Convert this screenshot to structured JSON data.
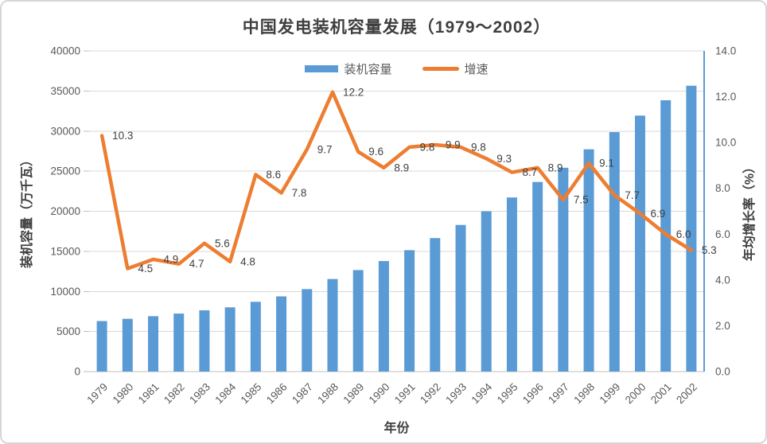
{
  "chart_data": {
    "type": "combo_bar_line",
    "title": "中国发电装机容量发展（1979～2002）",
    "categories": [
      "1979",
      "1980",
      "1981",
      "1982",
      "1983",
      "1984",
      "1985",
      "1986",
      "1987",
      "1988",
      "1989",
      "1990",
      "1991",
      "1992",
      "1993",
      "1994",
      "1995",
      "1996",
      "1997",
      "1998",
      "1999",
      "2000",
      "2001",
      "2002"
    ],
    "series": [
      {
        "name": "装机容量",
        "type": "bar",
        "axis": "left",
        "color": "#5B9BD5",
        "values": [
          6302,
          6587,
          6913,
          7236,
          7644,
          8012,
          8705,
          9382,
          10290,
          11550,
          12664,
          13789,
          15147,
          16653,
          18291,
          19990,
          21722,
          23654,
          25424,
          27729,
          29877,
          31932,
          33849,
          35657
        ]
      },
      {
        "name": "增速",
        "type": "line",
        "axis": "right",
        "color": "#ED7D31",
        "values": [
          10.3,
          4.5,
          4.9,
          4.7,
          5.6,
          4.8,
          8.6,
          7.8,
          9.7,
          12.2,
          9.6,
          8.9,
          9.8,
          9.9,
          9.8,
          9.3,
          8.7,
          8.9,
          7.5,
          9.1,
          7.7,
          6.9,
          6.0,
          5.3
        ],
        "data_labels": [
          "10.3",
          "4.5",
          "4.9",
          "4.7",
          "5.6",
          "4.8",
          "8.6",
          "7.8",
          "9.7",
          "12.2",
          "9.6",
          "8.9",
          "9.8",
          "9.9",
          "9.8",
          "9.3",
          "8.7",
          "8.9",
          "7.5",
          "9.1",
          "7.7",
          "6.9",
          "6.0",
          "5.3"
        ]
      }
    ],
    "x_axis": {
      "title": "年份"
    },
    "left_axis": {
      "title": "装机容量（万千瓦）",
      "min": 0,
      "max": 40000,
      "step": 5000,
      "tick_labels": [
        "0",
        "5000",
        "10000",
        "15000",
        "20000",
        "25000",
        "30000",
        "35000",
        "40000"
      ]
    },
    "right_axis": {
      "title": "年均增长率（%）",
      "min": 0,
      "max": 14,
      "step": 2,
      "tick_labels": [
        "0.0",
        "2.0",
        "4.0",
        "6.0",
        "8.0",
        "10.0",
        "12.0",
        "14.0"
      ]
    },
    "legend": {
      "position": "top"
    },
    "grid": "horizontal",
    "colors": {
      "bar": "#5B9BD5",
      "line": "#ED7D31",
      "axis_text": "#595959",
      "title_text": "#3F3F3F",
      "gridline": "#D9D9D9",
      "axis_line": "#BFBFBF",
      "right_axis_line": "#5B9BD5"
    }
  }
}
